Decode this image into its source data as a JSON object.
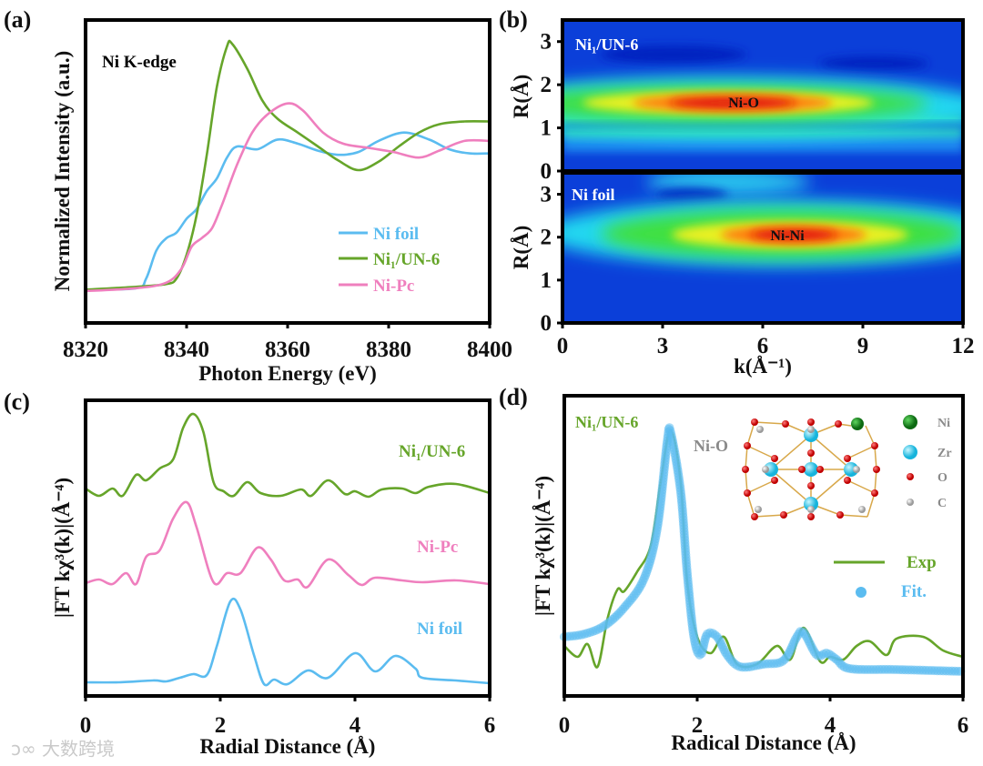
{
  "colors": {
    "blue": "#5bbcf0",
    "green": "#66a52a",
    "pink": "#ef7fbe",
    "gray": "#8a8a8a"
  },
  "watermark": "大数跨境",
  "chart_data": [
    {
      "panel": "(a)",
      "type": "line",
      "annotation": "Ni K-edge",
      "xlabel": "Photon Energy (eV)",
      "ylabel": "Normalized Intensity (a.u.)",
      "xlim": [
        8320,
        8400
      ],
      "ylim": [
        -0.24,
        1.94
      ],
      "xticks": [
        "8320",
        "8340",
        "8360",
        "8380",
        "8400"
      ],
      "legend_position": "bottom-right",
      "series": [
        {
          "name": "Ni foil",
          "color": "#5bbcf0",
          "x": [
            8320,
            8330,
            8332,
            8334,
            8336,
            8338,
            8340,
            8342,
            8344,
            8346,
            8348,
            8350,
            8354,
            8358,
            8362,
            8366,
            8370,
            8374,
            8378,
            8383,
            8388,
            8392,
            8396,
            8400
          ],
          "y": [
            0,
            0.01,
            0.08,
            0.28,
            0.37,
            0.41,
            0.51,
            0.58,
            0.71,
            0.8,
            0.95,
            1.03,
            1.01,
            1.08,
            1.05,
            1.0,
            0.97,
            0.99,
            1.07,
            1.13,
            1.08,
            1.01,
            0.98,
            0.98
          ]
        },
        {
          "name": "Ni₁/UN-6",
          "color": "#66a52a",
          "x": [
            8320,
            8330,
            8336,
            8338,
            8340,
            8342,
            8344,
            8346,
            8348,
            8349,
            8352,
            8355,
            8358,
            8362,
            8366,
            8370,
            8374,
            8378,
            8382,
            8386,
            8390,
            8395,
            8400
          ],
          "y": [
            0,
            0.02,
            0.04,
            0.08,
            0.25,
            0.54,
            0.97,
            1.46,
            1.75,
            1.77,
            1.59,
            1.36,
            1.23,
            1.13,
            1.03,
            0.93,
            0.86,
            0.92,
            1.03,
            1.13,
            1.19,
            1.21,
            1.21
          ]
        },
        {
          "name": "Ni-Pc",
          "color": "#ef7fbe",
          "x": [
            8320,
            8330,
            8336,
            8339,
            8341,
            8343,
            8345,
            8347,
            8350,
            8353,
            8356,
            8360,
            8363,
            8367,
            8371,
            8376,
            8381,
            8386,
            8390,
            8395,
            8400
          ],
          "y": [
            -0.01,
            0.01,
            0.05,
            0.15,
            0.31,
            0.37,
            0.44,
            0.61,
            0.9,
            1.13,
            1.26,
            1.34,
            1.29,
            1.13,
            1.05,
            1.02,
            0.99,
            0.95,
            1.0,
            1.07,
            1.07
          ]
        }
      ]
    },
    {
      "panel": "(b)",
      "type": "heatmap",
      "xlabel": "k(Å⁻¹)",
      "ylabel": "R(Å)",
      "xlim": [
        0,
        12
      ],
      "ylim": [
        0,
        3.5
      ],
      "xticks": [
        "0",
        "3",
        "6",
        "9",
        "12"
      ],
      "yticks": [
        "0",
        "1",
        "2",
        "3"
      ],
      "maps": [
        {
          "name": "Ni₁/UN-6",
          "peak_label": "Ni-O",
          "peak_k": 4.7,
          "peak_R": 1.6
        },
        {
          "name": "Ni foil",
          "peak_label": "Ni-Ni",
          "peak_k": 6.4,
          "peak_R": 2.1
        }
      ]
    },
    {
      "panel": "(c)",
      "type": "line",
      "xlabel": "Radial Distance (Å)",
      "ylabel": "|FT kχ³(k)|(Å⁻⁴)",
      "xlim": [
        0,
        6
      ],
      "ylim": [
        0,
        3.25
      ],
      "xticks": [
        "0",
        "2",
        "4",
        "6"
      ],
      "series": [
        {
          "name": "Ni₁/UN-6",
          "color": "#66a52a",
          "x": [
            0,
            0.2,
            0.4,
            0.55,
            0.75,
            0.9,
            1.1,
            1.3,
            1.45,
            1.6,
            1.75,
            1.9,
            2.05,
            2.2,
            2.4,
            2.6,
            2.9,
            3.2,
            3.35,
            3.6,
            3.85,
            4.0,
            4.2,
            4.4,
            4.7,
            4.9,
            5.1,
            5.5,
            6.0
          ],
          "y": [
            2.28,
            2.2,
            2.28,
            2.2,
            2.43,
            2.37,
            2.5,
            2.6,
            2.95,
            3.1,
            2.9,
            2.35,
            2.25,
            2.2,
            2.35,
            2.23,
            2.2,
            2.27,
            2.2,
            2.37,
            2.22,
            2.25,
            2.19,
            2.27,
            2.28,
            2.23,
            2.3,
            2.33,
            2.23
          ]
        },
        {
          "name": "Ni-Pc",
          "color": "#ef7fbe",
          "x": [
            0,
            0.2,
            0.4,
            0.6,
            0.75,
            0.9,
            1.1,
            1.3,
            1.5,
            1.65,
            1.9,
            2.1,
            2.3,
            2.55,
            2.75,
            2.95,
            3.15,
            3.3,
            3.6,
            3.9,
            4.1,
            4.3,
            4.7,
            5.0,
            5.5,
            6.0
          ],
          "y": [
            1.24,
            1.28,
            1.23,
            1.35,
            1.23,
            1.53,
            1.6,
            1.95,
            2.13,
            1.85,
            1.25,
            1.35,
            1.35,
            1.63,
            1.5,
            1.27,
            1.28,
            1.2,
            1.5,
            1.33,
            1.22,
            1.3,
            1.27,
            1.25,
            1.27,
            1.23
          ]
        },
        {
          "name": "Ni foil",
          "color": "#5bbcf0",
          "x": [
            0,
            0.5,
            1.0,
            1.2,
            1.4,
            1.6,
            1.8,
            1.95,
            2.15,
            2.3,
            2.5,
            2.65,
            2.8,
            3.0,
            3.3,
            3.6,
            4.0,
            4.3,
            4.6,
            4.9,
            5.0,
            5.5,
            6.0
          ],
          "y": [
            0.15,
            0.15,
            0.17,
            0.16,
            0.2,
            0.24,
            0.23,
            0.55,
            1.04,
            0.95,
            0.45,
            0.13,
            0.18,
            0.13,
            0.28,
            0.2,
            0.47,
            0.27,
            0.44,
            0.3,
            0.2,
            0.17,
            0.14
          ]
        }
      ]
    },
    {
      "panel": "(d)",
      "type": "line",
      "xlabel": "Radical Distance (Å)",
      "ylabel": "|FT kχ³(k)|(Å⁻⁴)",
      "xlim": [
        0,
        6
      ],
      "ylim": [
        0,
        3.3
      ],
      "xticks": [
        "0",
        "2",
        "4",
        "6"
      ],
      "sample_label": "Ni₁/UN-6",
      "peak_label": "Ni-O",
      "legend_position": "right",
      "inset_legend": [
        "Ni",
        "Zr",
        "O",
        "C"
      ],
      "series": [
        {
          "name": "Exp",
          "color": "#66a52a",
          "style": "line",
          "x": [
            0,
            0.2,
            0.35,
            0.5,
            0.65,
            0.8,
            0.9,
            1.1,
            1.3,
            1.45,
            1.6,
            1.75,
            1.85,
            2.0,
            2.2,
            2.4,
            2.6,
            2.9,
            3.2,
            3.4,
            3.6,
            3.85,
            4.0,
            4.2,
            4.4,
            4.6,
            4.85,
            5.0,
            5.4,
            5.7,
            6.0
          ],
          "y": [
            0.55,
            0.43,
            0.57,
            0.32,
            0.85,
            1.17,
            1.15,
            1.37,
            1.65,
            2.35,
            2.92,
            2.35,
            1.25,
            0.65,
            0.47,
            0.65,
            0.35,
            0.35,
            0.55,
            0.4,
            0.75,
            0.38,
            0.43,
            0.4,
            0.55,
            0.6,
            0.45,
            0.63,
            0.65,
            0.5,
            0.43
          ]
        },
        {
          "name": "Fit.",
          "color": "#5bbcf0",
          "style": "dots",
          "x": [
            0,
            0.3,
            0.6,
            0.9,
            1.2,
            1.4,
            1.55,
            1.6,
            1.75,
            1.85,
            1.95,
            2.05,
            2.15,
            2.3,
            2.45,
            2.65,
            3.0,
            3.3,
            3.5,
            3.6,
            3.8,
            3.95,
            4.1,
            4.3,
            5.0,
            6.0
          ],
          "y": [
            0.65,
            0.68,
            0.77,
            0.97,
            1.29,
            1.85,
            2.8,
            2.9,
            2.25,
            1.35,
            0.65,
            0.45,
            0.68,
            0.65,
            0.45,
            0.32,
            0.35,
            0.39,
            0.65,
            0.7,
            0.45,
            0.47,
            0.4,
            0.3,
            0.29,
            0.27
          ]
        }
      ]
    }
  ]
}
